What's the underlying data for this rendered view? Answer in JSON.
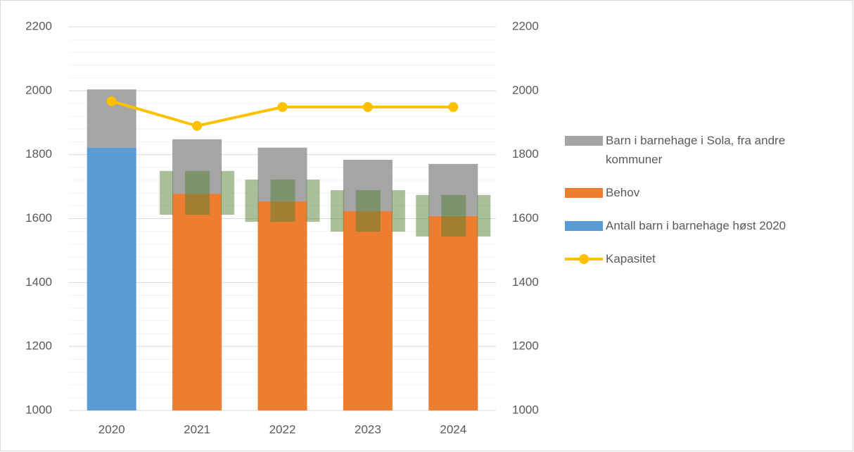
{
  "chart_data": {
    "type": "bar",
    "stacked": true,
    "categories": [
      "2020",
      "2021",
      "2022",
      "2023",
      "2024"
    ],
    "series": [
      {
        "name": "Antall barn i barnehage høst 2020",
        "color": "#5b9bd5",
        "values": [
          1822,
          null,
          null,
          null,
          null
        ]
      },
      {
        "name": "Behov",
        "color": "#ed7d31",
        "values": [
          null,
          1678,
          1654,
          1623,
          1608
        ]
      },
      {
        "name": "Barn i barnehage i Sola, fra andre kommuner",
        "color": "#a5a5a5",
        "values": [
          182,
          170,
          168,
          161,
          163
        ]
      },
      {
        "name": "Kapasitet",
        "type": "line",
        "color": "#ffc000",
        "values": [
          1967,
          1890,
          1949,
          1949,
          1949
        ]
      }
    ],
    "range": {
      "color": "#548235",
      "low": [
        null,
        1612,
        1590,
        1559,
        1544
      ],
      "high": [
        null,
        1749,
        1722,
        1689,
        1674
      ]
    },
    "ylim": [
      1000,
      2200
    ],
    "yticks": [
      1000,
      1200,
      1400,
      1600,
      1800,
      2000,
      2200
    ],
    "y2lim": [
      1000,
      2200
    ],
    "y2ticks": [
      1000,
      1200,
      1400,
      1600,
      1800,
      2000,
      2200
    ],
    "grid": true,
    "minor_grid_step": 40,
    "legend": "right"
  }
}
